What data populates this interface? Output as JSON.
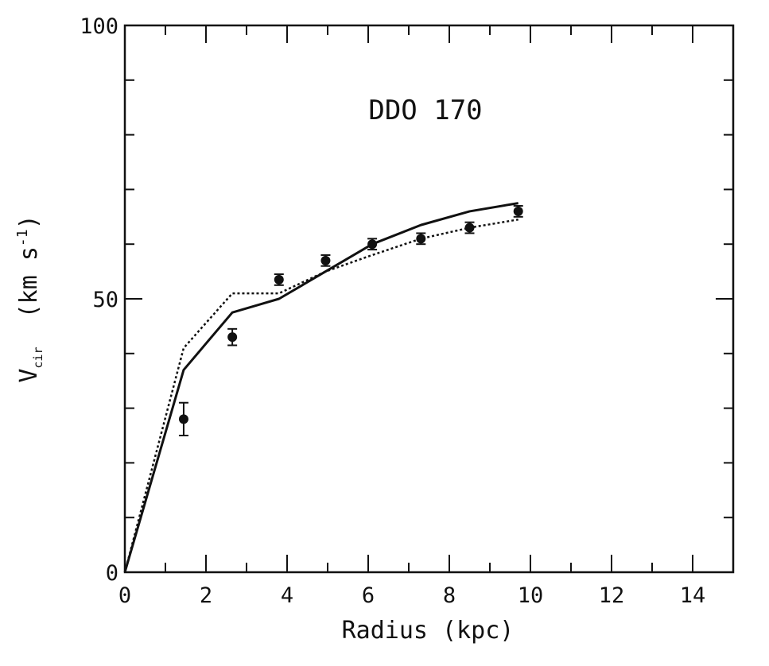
{
  "chart_data": {
    "type": "line",
    "title": "DDO 170",
    "xlabel": "Radius (kpc)",
    "ylabel": {
      "prefix": "V",
      "subscript": "cir",
      "middle": "  (km s",
      "superscript": "-1",
      "suffix": ")"
    },
    "xlim": [
      0,
      15
    ],
    "ylim": [
      0,
      100
    ],
    "xticks": [
      0,
      2,
      4,
      6,
      8,
      10,
      12,
      14
    ],
    "xtick_labels": [
      "0",
      "2",
      "4",
      "6",
      "8",
      "10",
      "12",
      "14"
    ],
    "yticks": [
      0,
      50,
      100
    ],
    "ytick_labels": [
      "0",
      "50",
      "100"
    ],
    "x_minor_step": 1,
    "y_minor_step": 10,
    "grid": false,
    "series": [
      {
        "kind": "line-solid",
        "x": [
          0,
          1.45,
          2.65,
          3.8,
          4.95,
          6.1,
          7.3,
          8.5,
          9.7
        ],
        "y": [
          0,
          37,
          47.5,
          50,
          55,
          60,
          63.5,
          66,
          67.5
        ]
      },
      {
        "kind": "line-dotted",
        "x": [
          0,
          1.45,
          2.65,
          3.8,
          4.95,
          6.1,
          7.3,
          8.5,
          9.7
        ],
        "y": [
          0,
          41,
          51,
          51,
          55,
          58,
          61,
          63,
          64.5
        ]
      },
      {
        "kind": "points",
        "x": [
          1.45,
          2.65,
          3.8,
          4.95,
          6.1,
          7.3,
          8.5,
          9.7
        ],
        "y": [
          28,
          43,
          53.5,
          57,
          60,
          61,
          63,
          66
        ],
        "yerr": [
          3,
          1.5,
          1,
          1,
          1,
          1,
          1,
          1
        ]
      }
    ]
  }
}
